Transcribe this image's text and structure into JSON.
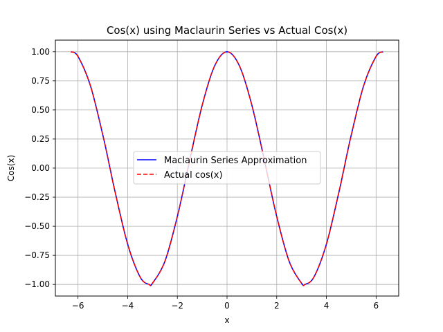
{
  "chart_data": {
    "type": "line",
    "title": "Cos(x) using Maclaurin Series vs Actual Cos(x)",
    "xlabel": "x",
    "ylabel": "Cos(x)",
    "xlim": [
      -6.91,
      6.91
    ],
    "ylim": [
      -1.1,
      1.1
    ],
    "x_ticks": [
      -6,
      -4,
      -2,
      0,
      2,
      4,
      6
    ],
    "x_tick_labels": [
      "−6",
      "−4",
      "−2",
      "0",
      "2",
      "4",
      "6"
    ],
    "y_ticks": [
      -1.0,
      -0.75,
      -0.5,
      -0.25,
      0.0,
      0.25,
      0.5,
      0.75,
      1.0
    ],
    "y_tick_labels": [
      "−1.00",
      "−0.75",
      "−0.50",
      "−0.25",
      "0.00",
      "0.25",
      "0.50",
      "0.75",
      "1.00"
    ],
    "grid": true,
    "legend_position": "center",
    "series": [
      {
        "name": "Maclaurin Series Approximation",
        "color": "#0000ff",
        "linestyle": "solid",
        "x": [
          -6.283,
          -6.0,
          -5.5,
          -5.0,
          -4.712,
          -4.5,
          -4.0,
          -3.5,
          -3.142,
          -3.0,
          -2.5,
          -2.0,
          -1.571,
          -1.5,
          -1.0,
          -0.5,
          0.0,
          0.5,
          1.0,
          1.5,
          1.571,
          2.0,
          2.5,
          3.0,
          3.142,
          3.5,
          4.0,
          4.5,
          4.712,
          5.0,
          5.5,
          6.0,
          6.283
        ],
        "y": [
          1.0,
          0.96,
          0.709,
          0.284,
          0.0,
          -0.211,
          -0.654,
          -0.936,
          -1.0,
          -0.99,
          -0.801,
          -0.416,
          0.0,
          0.071,
          0.54,
          0.878,
          1.0,
          0.878,
          0.54,
          0.071,
          0.0,
          -0.416,
          -0.801,
          -0.99,
          -1.0,
          -0.936,
          -0.654,
          -0.211,
          0.0,
          0.284,
          0.709,
          0.96,
          1.0
        ]
      },
      {
        "name": "Actual cos(x)",
        "color": "#ff0000",
        "linestyle": "dashed",
        "x": [
          -6.283,
          -6.0,
          -5.5,
          -5.0,
          -4.712,
          -4.5,
          -4.0,
          -3.5,
          -3.142,
          -3.0,
          -2.5,
          -2.0,
          -1.571,
          -1.5,
          -1.0,
          -0.5,
          0.0,
          0.5,
          1.0,
          1.5,
          1.571,
          2.0,
          2.5,
          3.0,
          3.142,
          3.5,
          4.0,
          4.5,
          4.712,
          5.0,
          5.5,
          6.0,
          6.283
        ],
        "y": [
          1.0,
          0.96,
          0.709,
          0.284,
          0.0,
          -0.211,
          -0.654,
          -0.936,
          -1.0,
          -0.99,
          -0.801,
          -0.416,
          0.0,
          0.071,
          0.54,
          0.878,
          1.0,
          0.878,
          0.54,
          0.071,
          0.0,
          -0.416,
          -0.801,
          -0.99,
          -1.0,
          -0.936,
          -0.654,
          -0.211,
          0.0,
          0.284,
          0.709,
          0.96,
          1.0
        ]
      }
    ]
  }
}
